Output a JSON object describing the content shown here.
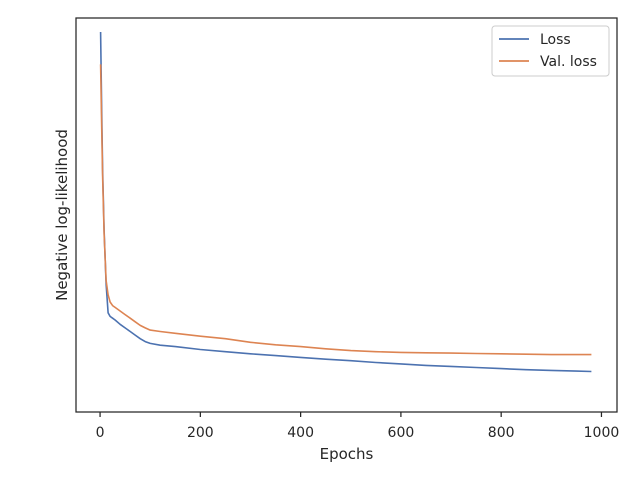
{
  "chart_data": {
    "type": "line",
    "title": "",
    "xlabel": "Epochs",
    "ylabel": "Negative log-likelihood",
    "xlim": [
      -48,
      1031
    ],
    "ylim": [
      0,
      1
    ],
    "x_ticks": [
      0,
      200,
      400,
      600,
      800,
      1000
    ],
    "y_ticks_shown": false,
    "grid": false,
    "legend": {
      "placement": "top-right",
      "entries": [
        "Loss",
        "Val. loss"
      ]
    },
    "series": [
      {
        "name": "Loss",
        "color": "#4c72b0",
        "x": [
          1,
          3,
          5,
          8,
          12,
          16,
          20,
          25,
          30,
          40,
          50,
          60,
          70,
          80,
          90,
          100,
          120,
          150,
          200,
          250,
          300,
          350,
          400,
          450,
          500,
          550,
          600,
          650,
          700,
          750,
          800,
          850,
          900,
          950,
          980
        ],
        "y": [
          1.0,
          0.8,
          0.62,
          0.45,
          0.3,
          0.22,
          0.21,
          0.205,
          0.2,
          0.188,
          0.178,
          0.168,
          0.158,
          0.148,
          0.14,
          0.135,
          0.13,
          0.126,
          0.118,
          0.112,
          0.106,
          0.101,
          0.096,
          0.091,
          0.087,
          0.082,
          0.078,
          0.074,
          0.071,
          0.068,
          0.065,
          0.062,
          0.06,
          0.058,
          0.057
        ]
      },
      {
        "name": "Val. loss",
        "color": "#dd8452",
        "x": [
          1,
          3,
          5,
          8,
          12,
          16,
          20,
          25,
          30,
          40,
          50,
          60,
          70,
          80,
          90,
          100,
          120,
          150,
          200,
          250,
          300,
          350,
          400,
          450,
          500,
          550,
          600,
          650,
          700,
          750,
          800,
          850,
          900,
          950,
          980
        ],
        "y": [
          0.91,
          0.75,
          0.6,
          0.44,
          0.31,
          0.27,
          0.25,
          0.24,
          0.235,
          0.225,
          0.215,
          0.205,
          0.195,
          0.185,
          0.178,
          0.172,
          0.168,
          0.163,
          0.155,
          0.148,
          0.138,
          0.131,
          0.126,
          0.12,
          0.115,
          0.112,
          0.11,
          0.109,
          0.108,
          0.107,
          0.106,
          0.105,
          0.104,
          0.104,
          0.104
        ]
      }
    ]
  }
}
